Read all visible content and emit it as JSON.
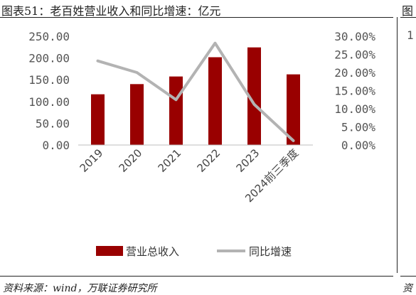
{
  "figure": {
    "title": "图表51：老百姓营业收入和同比增速：亿元",
    "right_title": "图",
    "right_tick": "1",
    "source": "资料来源：wind，万联证券研究所",
    "source_right": "资"
  },
  "chart_data": {
    "type": "bar",
    "title": "",
    "categories": [
      "2019",
      "2020",
      "2021",
      "2022",
      "2023",
      "2024前三季度"
    ],
    "series": [
      {
        "name": "营业总收入",
        "type": "bar",
        "axis": "left",
        "color": "#990000",
        "values": [
          116.6,
          140.0,
          157.5,
          201.8,
          224.4,
          162.4
        ]
      },
      {
        "name": "同比增速",
        "type": "line",
        "axis": "right",
        "color": "#b3b3b3",
        "values": [
          23.2,
          20.0,
          12.5,
          28.1,
          11.2,
          1.2
        ]
      }
    ],
    "y_left": {
      "ylim": [
        0,
        250
      ],
      "ticks": [
        "0.00",
        "50.00",
        "100.00",
        "150.00",
        "200.00",
        "250.00"
      ]
    },
    "y_right": {
      "ylim": [
        0,
        30
      ],
      "ticks": [
        "0.00%",
        "5.00%",
        "10.00%",
        "15.00%",
        "20.00%",
        "25.00%",
        "30.00%"
      ]
    },
    "grid": false,
    "legend_position": "bottom"
  }
}
